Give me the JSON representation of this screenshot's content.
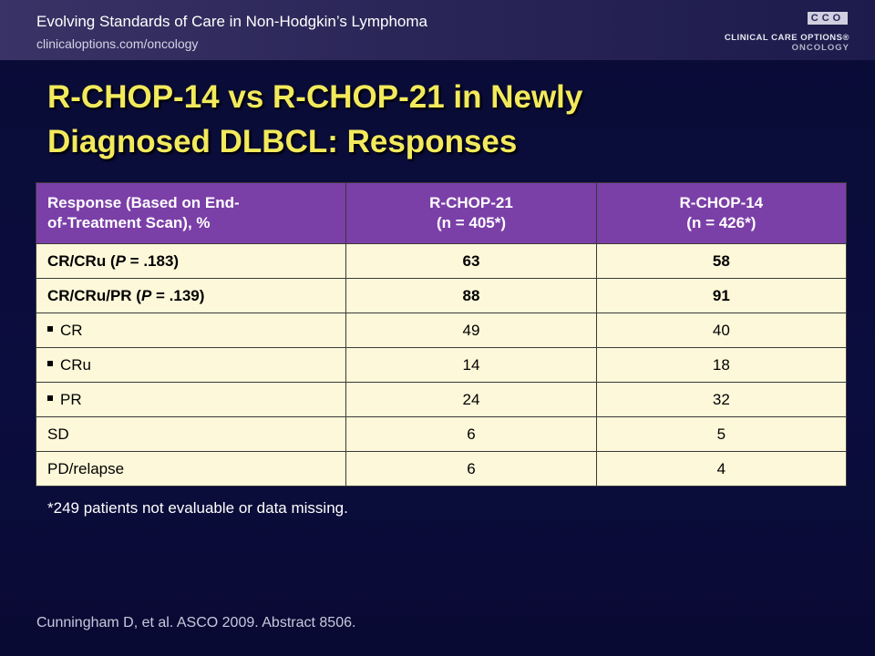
{
  "header": {
    "title": "Evolving Standards of Care in Non-Hodgkin’s Lymphoma",
    "url": "clinicaloptions.com/oncology",
    "logo": {
      "mark": "CCO",
      "line1": "CLINICAL CARE OPTIONS®",
      "line2": "ONCOLOGY"
    }
  },
  "slide": {
    "title_line1": "R-CHOP-14 vs R-CHOP-21 in Newly",
    "title_line2": "Diagnosed DLBCL: Responses"
  },
  "table": {
    "header": {
      "col1_line1": "Response (Based on End-",
      "col1_line2": "of-Treatment Scan), %",
      "col2_line1": "R-CHOP-21",
      "col2_line2": "(n = 405*)",
      "col3_line1": "R-CHOP-14",
      "col3_line2": "(n = 426*)"
    },
    "rows": [
      {
        "label_pre": "CR/CRu (",
        "label_p": "P",
        "label_post": " = .183)",
        "v21": "63",
        "v14": "58"
      },
      {
        "label_pre": "CR/CRu/PR (",
        "label_p": "P",
        "label_post": " = .139)",
        "v21": "88",
        "v14": "91"
      },
      {
        "label": "CR",
        "v21": "49",
        "v14": "40"
      },
      {
        "label": "CRu",
        "v21": "14",
        "v14": "18"
      },
      {
        "label": "PR",
        "v21": "24",
        "v14": "32"
      },
      {
        "label": "SD",
        "v21": "6",
        "v14": "5"
      },
      {
        "label": "PD/relapse",
        "v21": "6",
        "v14": "4"
      }
    ]
  },
  "footnote": "*249 patients not evaluable or data missing.",
  "citation": "Cunningham D, et al. ASCO 2009. Abstract 8506.",
  "colors": {
    "background": "#0b0c3a",
    "title": "#f2ea5c",
    "table_header": "#7b3fa8",
    "table_cell": "#fdf8d9"
  },
  "icons": {
    "bullet": "square-bullet-icon"
  }
}
